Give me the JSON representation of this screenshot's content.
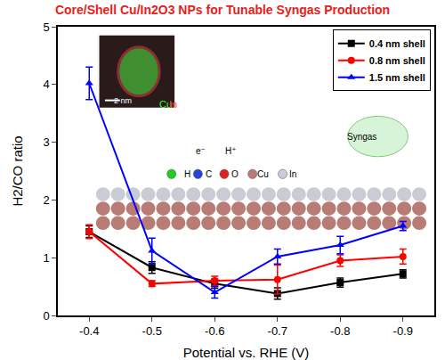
{
  "chart_data": {
    "type": "line",
    "title": "Core/Shell Cu/In2O3 NPs for Tunable Syngas Production",
    "x_label": "Potential vs. RHE (V)",
    "y_label": "H2/CO ratio",
    "x": [
      -0.4,
      -0.5,
      -0.6,
      -0.7,
      -0.8,
      -0.9
    ],
    "xlim": [
      -0.35,
      -0.95
    ],
    "xticks": [
      -0.4,
      -0.5,
      -0.6,
      -0.7,
      -0.8,
      -0.9
    ],
    "ylim": [
      0,
      5
    ],
    "yticks": [
      0,
      1,
      2,
      3,
      4,
      5
    ],
    "legend": "top right",
    "series": [
      {
        "name": "0.4 nm shell",
        "color": "#000000",
        "marker": "square",
        "values": [
          1.45,
          0.83,
          0.55,
          0.38,
          0.57,
          0.72
        ],
        "errors": [
          0.1,
          0.1,
          0.08,
          0.1,
          0.08,
          0.07
        ]
      },
      {
        "name": "0.8 nm shell",
        "color": "#ff0000",
        "marker": "circle",
        "values": [
          1.45,
          0.55,
          0.6,
          0.62,
          0.95,
          1.02
        ],
        "errors": [
          0.12,
          0.05,
          0.08,
          0.25,
          0.1,
          0.13
        ]
      },
      {
        "name": "1.5 nm shell",
        "color": "#0000ff",
        "marker": "triangle-up",
        "values": [
          4.02,
          1.12,
          0.4,
          1.02,
          1.22,
          1.55
        ],
        "errors": [
          0.28,
          0.22,
          0.1,
          0.13,
          0.15,
          0.08
        ]
      }
    ],
    "annotations": [
      "2 nm",
      "Cu",
      "In",
      "H",
      "C",
      "O",
      "Cu",
      "In",
      "e⁻",
      "H⁺",
      "Syngas"
    ]
  }
}
